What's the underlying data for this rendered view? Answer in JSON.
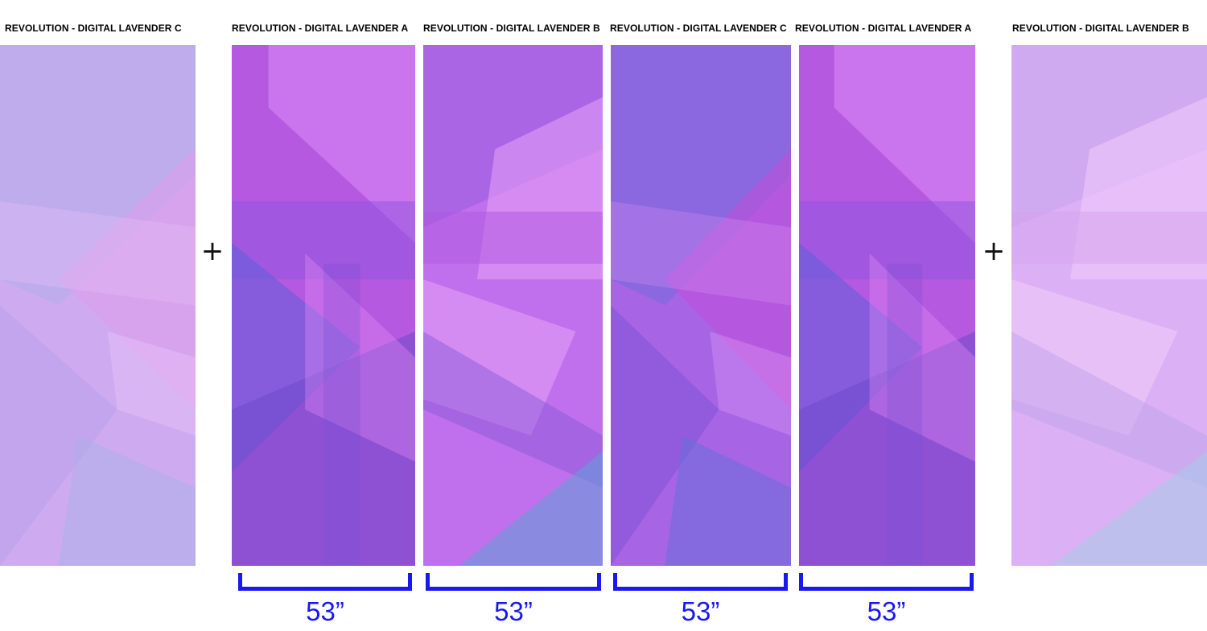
{
  "accent_color": "#1a18f0",
  "panels": [
    {
      "label": "REVOLUTION - DIGITAL LAVENDER C",
      "variant": "C",
      "faded": true
    },
    {
      "label": "REVOLUTION - DIGITAL LAVENDER A",
      "variant": "A",
      "faded": false
    },
    {
      "label": "REVOLUTION - DIGITAL LAVENDER B",
      "variant": "B",
      "faded": false
    },
    {
      "label": "REVOLUTION - DIGITAL LAVENDER C",
      "variant": "C",
      "faded": false
    },
    {
      "label": "REVOLUTION - DIGITAL LAVENDER A",
      "variant": "A",
      "faded": false
    },
    {
      "label": "REVOLUTION - DIGITAL LAVENDER B",
      "variant": "B",
      "faded": true
    }
  ],
  "plus_signs": [
    "+",
    "+"
  ],
  "measurements": [
    "53”",
    "53”",
    "53”",
    "53”"
  ]
}
